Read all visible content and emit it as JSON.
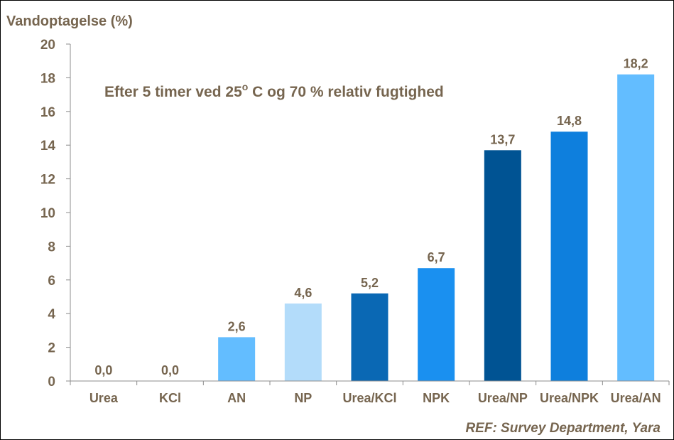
{
  "chart_data": {
    "type": "bar",
    "ylabel": "Vandoptagelse (%)",
    "ylim": [
      0,
      20
    ],
    "yticks": [
      "0",
      "2",
      "4",
      "6",
      "8",
      "10",
      "12",
      "14",
      "16",
      "18",
      "20"
    ],
    "grid": false,
    "categories": [
      "Urea",
      "KCl",
      "AN",
      "NP",
      "Urea/KCl",
      "NPK",
      "Urea/NP",
      "Urea/NPK",
      "Urea/AN"
    ],
    "values": [
      0.0,
      0.0,
      2.6,
      4.6,
      5.2,
      6.7,
      13.7,
      14.8,
      18.2
    ],
    "data_labels": [
      "0,0",
      "0,0",
      "2,6",
      "4,6",
      "5,2",
      "6,7",
      "13,7",
      "14,8",
      "18,2"
    ],
    "bar_colors": [
      "#63bdff",
      "#63bdff",
      "#63bdff",
      "#b3dcfa",
      "#0a68b4",
      "#1a90f0",
      "#005393",
      "#0e7fdd",
      "#63bdff"
    ],
    "annotation": {
      "pre": "Efter 5 timer ved 25",
      "superscript": "o",
      "post": " C og 70 %  relativ fugtighed"
    },
    "reference": "REF: Survey Department, Yara"
  }
}
